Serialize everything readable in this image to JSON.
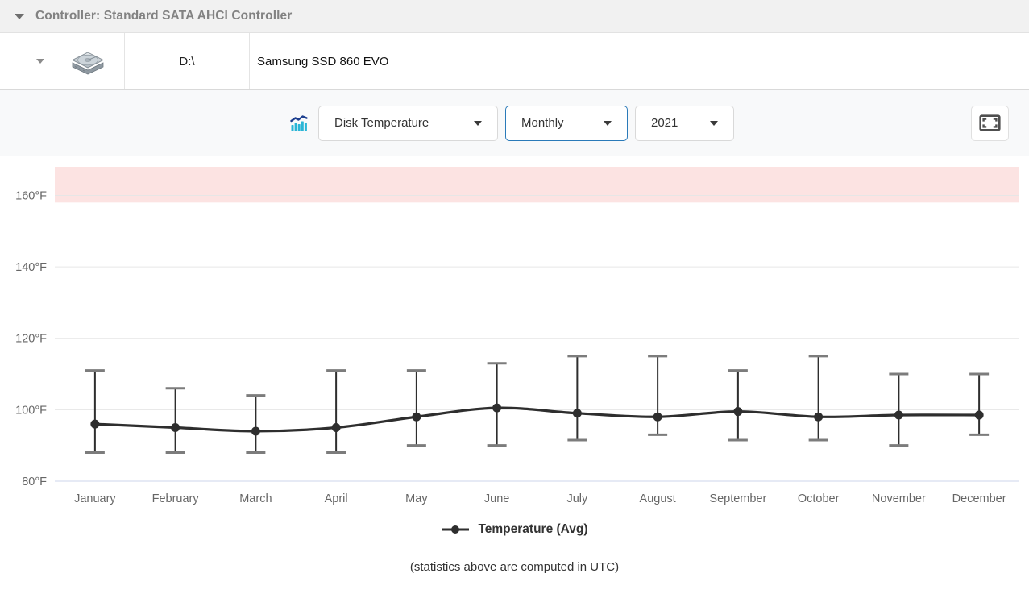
{
  "header": {
    "title": "Controller: Standard SATA AHCI Controller"
  },
  "device": {
    "drive_letter": "D:\\",
    "model": "Samsung SSD 860 EVO"
  },
  "toolbar": {
    "metric": "Disk Temperature",
    "period": "Monthly",
    "year": "2021"
  },
  "chart_data": {
    "type": "line",
    "subtype": "line_with_error_bars",
    "title": "",
    "xlabel": "",
    "ylabel": "",
    "categories": [
      "January",
      "February",
      "March",
      "April",
      "May",
      "June",
      "July",
      "August",
      "September",
      "October",
      "November",
      "December"
    ],
    "series": [
      {
        "name": "Temperature (Avg)",
        "role": "avg",
        "values": [
          96,
          95,
          94,
          95,
          98,
          100.5,
          99,
          98,
          99.5,
          98,
          98.5,
          98.5
        ]
      },
      {
        "name": "Temperature (Min)",
        "role": "min",
        "values": [
          88,
          88,
          88,
          88,
          90,
          90,
          91.5,
          93,
          91.5,
          91.5,
          90,
          93
        ]
      },
      {
        "name": "Temperature (Max)",
        "role": "max",
        "values": [
          111,
          106,
          104,
          111,
          111,
          113,
          115,
          115,
          111,
          115,
          110,
          110
        ]
      }
    ],
    "ylim": [
      80,
      168
    ],
    "yticks": [
      80,
      100,
      120,
      140,
      160
    ],
    "y_unit": "°F",
    "plot_band": {
      "from": 158,
      "to": 168,
      "color": "#fce3e2"
    },
    "grid": true,
    "legend": {
      "label": "Temperature (Avg)",
      "position": "bottom-center"
    },
    "colors": {
      "line": "#2e2e2e",
      "marker": "#2e2e2e",
      "whisker_stem": "#2e2e2e",
      "whisker_cap": "#7c7c7c",
      "gridline": "#e6e6e6",
      "axis_line": "#ccd6eb",
      "tick_label": "#666666"
    }
  },
  "footer": {
    "note": "(statistics above are computed in UTC)"
  }
}
